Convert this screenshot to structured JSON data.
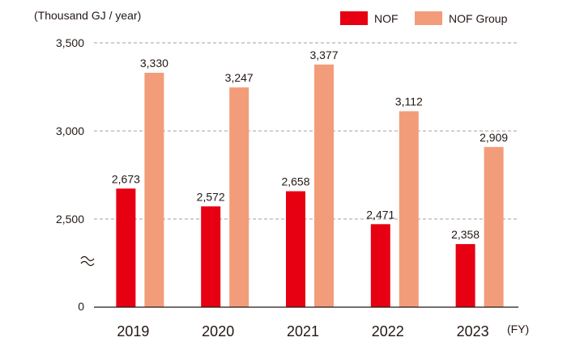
{
  "chart_data": {
    "type": "bar",
    "y_unit_label": "(Thousand GJ / year)",
    "x_unit_label": "(FY)",
    "categories": [
      "2019",
      "2020",
      "2021",
      "2022",
      "2023"
    ],
    "series": [
      {
        "name": "NOF",
        "color": "#e60012",
        "values": [
          2673,
          2572,
          2658,
          2471,
          2358
        ]
      },
      {
        "name": "NOF Group",
        "color": "#f29c7a",
        "values": [
          3330,
          3247,
          3377,
          3112,
          2909
        ]
      }
    ],
    "value_labels": [
      [
        "2,673",
        "2,572",
        "2,658",
        "2,471",
        "2,358"
      ],
      [
        "3,330",
        "3,247",
        "3,377",
        "3,112",
        "2,909"
      ]
    ],
    "y_ticks": [
      {
        "value": 2500,
        "label": "2,500"
      },
      {
        "value": 3000,
        "label": "3,000"
      },
      {
        "value": 3500,
        "label": "3,500"
      }
    ],
    "y_baseline_label": "0",
    "ylim": [
      2000,
      3500
    ],
    "axis_break": true,
    "grid": "dashed horizontal",
    "legend_position": "top-right"
  }
}
